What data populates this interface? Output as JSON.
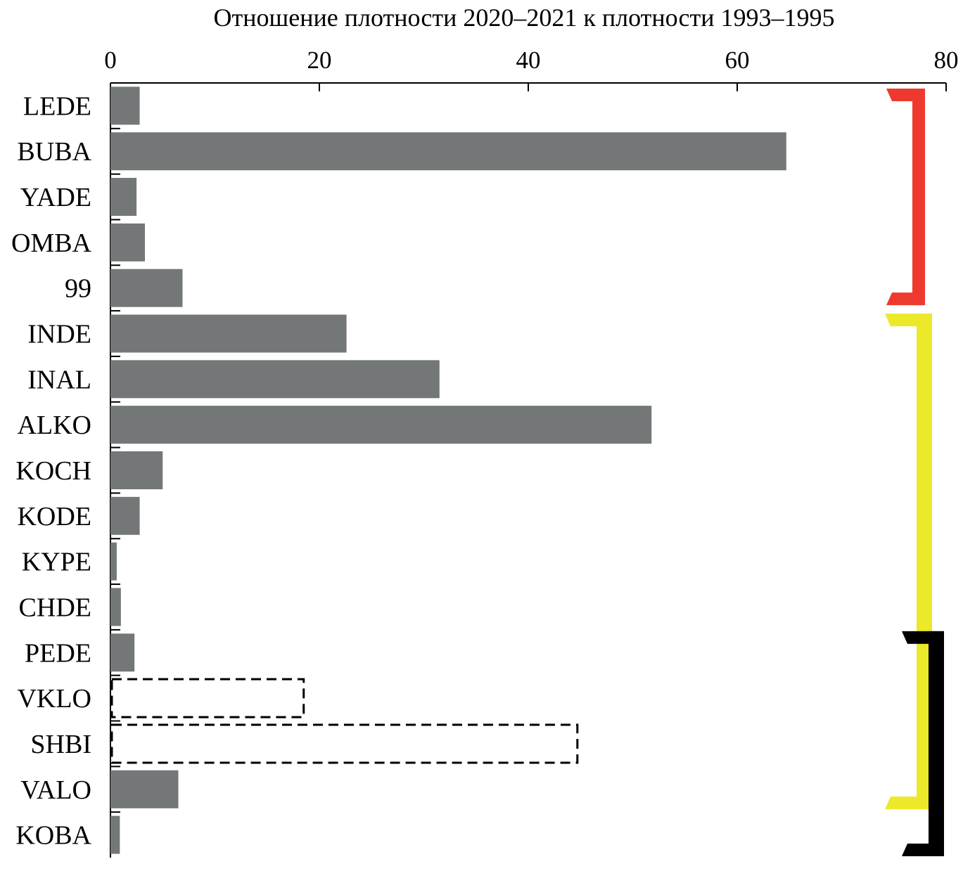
{
  "chart_data": {
    "type": "bar",
    "orientation": "horizontal",
    "title": "Отношение плотности 2020–2021 к плотности 1993–1995",
    "xlabel": "Отношение плотности 2020–2021 к плотности 1993–1995",
    "ylabel": "",
    "xlim": [
      0,
      80
    ],
    "xticks": [
      0,
      20,
      40,
      60,
      80
    ],
    "x_axis_position": "top",
    "grid": false,
    "categories": [
      "LEDE",
      "BUBA",
      "YADE",
      "OMBA",
      "99",
      "INDE",
      "INAL",
      "ALKO",
      "KOCH",
      "KODE",
      "KYPE",
      "CHDE",
      "PEDE",
      "VKLO",
      "SHBI",
      "VALO",
      "KOBA"
    ],
    "values": [
      2.8,
      64.7,
      2.5,
      3.3,
      6.9,
      22.6,
      31.5,
      51.8,
      5.0,
      2.8,
      0.6,
      1.0,
      2.3,
      18.5,
      44.7,
      6.5,
      0.9
    ],
    "bar_styles": [
      "solid",
      "solid",
      "solid",
      "solid",
      "solid",
      "solid",
      "solid",
      "solid",
      "solid",
      "solid",
      "solid",
      "solid",
      "solid",
      "dashed",
      "dashed",
      "solid",
      "solid"
    ],
    "bar_color": "#737778",
    "group_brackets": [
      {
        "color": "#ee3a2e",
        "from": "LEDE",
        "to": "99"
      },
      {
        "color": "#ece82a",
        "from": "INDE",
        "to": "VALO"
      },
      {
        "color": "#000000",
        "from": "PEDE",
        "to": "KOBA"
      }
    ]
  }
}
